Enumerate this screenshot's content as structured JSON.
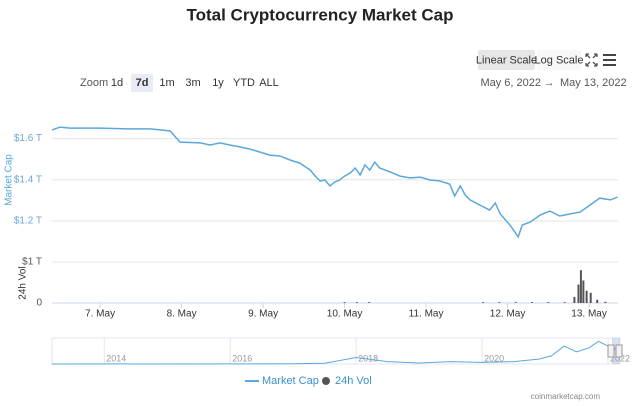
{
  "chart_data": [
    {
      "type": "line",
      "title": "Total Cryptocurrency Market Cap",
      "y_label": "Market Cap",
      "zoom_label": "Zoom",
      "zoom_buttons": [
        "1d",
        "7d",
        "1m",
        "3m",
        "1y",
        "YTD",
        "ALL"
      ],
      "zoom_selected": "7d",
      "scale_buttons": [
        "Linear Scale",
        "Log Scale"
      ],
      "scale_selected": "Linear Scale",
      "log_scale": false,
      "range_from": "May 6, 2022",
      "range_separator": "→",
      "range_to": "May 13, 2022",
      "grid": true,
      "xlim": [
        6.41,
        13.355
      ],
      "xticks": [
        {
          "value": 7,
          "label": "7. May"
        },
        {
          "value": 8,
          "label": "8. May"
        },
        {
          "value": 9,
          "label": "9. May"
        },
        {
          "value": 10,
          "label": "10. May"
        },
        {
          "value": 11,
          "label": "11. May"
        },
        {
          "value": 12,
          "label": "12. May"
        },
        {
          "value": 13,
          "label": "13. May"
        }
      ],
      "ylim": [
        1.02,
        1.7
      ],
      "yticks": [
        {
          "value": 1.2,
          "label": "$1.2 T"
        },
        {
          "value": 1.4,
          "label": "$1.4 T"
        },
        {
          "value": 1.6,
          "label": "$1.6 T"
        }
      ],
      "series": [
        {
          "name": "Market Cap",
          "color": "#5aa8dc",
          "x": [
            6.41,
            6.51,
            6.63,
            7.0,
            7.37,
            7.61,
            7.74,
            7.86,
            7.98,
            8.23,
            8.35,
            8.47,
            8.59,
            8.72,
            8.84,
            8.96,
            9.08,
            9.21,
            9.33,
            9.45,
            9.58,
            9.64,
            9.7,
            9.76,
            9.82,
            9.88,
            9.94,
            10.0,
            10.07,
            10.13,
            10.19,
            10.25,
            10.31,
            10.37,
            10.43,
            10.56,
            10.68,
            10.8,
            10.93,
            11.05,
            11.17,
            11.29,
            11.35,
            11.42,
            11.48,
            11.54,
            11.66,
            11.78,
            11.85,
            11.91,
            12.03,
            12.09,
            12.13,
            12.18,
            12.28,
            12.4,
            12.52,
            12.64,
            12.77,
            12.89,
            13.01,
            13.13,
            13.26,
            13.35
          ],
          "values": [
            1.642,
            1.656,
            1.651,
            1.651,
            1.647,
            1.647,
            1.642,
            1.637,
            1.583,
            1.579,
            1.569,
            1.579,
            1.569,
            1.559,
            1.549,
            1.535,
            1.52,
            1.515,
            1.496,
            1.481,
            1.447,
            1.418,
            1.394,
            1.399,
            1.37,
            1.389,
            1.399,
            1.418,
            1.433,
            1.457,
            1.423,
            1.472,
            1.447,
            1.486,
            1.457,
            1.438,
            1.418,
            1.409,
            1.413,
            1.399,
            1.394,
            1.379,
            1.321,
            1.37,
            1.326,
            1.302,
            1.277,
            1.253,
            1.287,
            1.234,
            1.18,
            1.146,
            1.122,
            1.18,
            1.195,
            1.229,
            1.248,
            1.224,
            1.234,
            1.243,
            1.277,
            1.311,
            1.302,
            1.316
          ]
        }
      ]
    },
    {
      "type": "bar",
      "y_label": "24h Vol",
      "ylim": [
        0,
        1
      ],
      "yticks": [
        0,
        {
          "value": 1,
          "label": "$1 T"
        }
      ],
      "series": [
        {
          "name": "24h Vol",
          "color": "#555555",
          "x": [
            10.0,
            10.15,
            10.3,
            11.7,
            11.9,
            12.1,
            12.3,
            12.5,
            12.7,
            12.82,
            12.87,
            12.9,
            12.93,
            12.97,
            13.02,
            13.1,
            13.2
          ],
          "values": [
            0.02,
            0.02,
            0.02,
            0.02,
            0.02,
            0.02,
            0.02,
            0.02,
            0.02,
            0.15,
            0.45,
            0.8,
            0.55,
            0.3,
            0.25,
            0.08,
            0.03
          ]
        }
      ]
    },
    {
      "type": "line",
      "xlim": [
        2013.17,
        2022.19
      ],
      "xticks": [
        2014,
        2016,
        2018,
        2020,
        2022
      ],
      "ylim": [
        0,
        3.2
      ],
      "series": [
        {
          "color": "#5aa8dc",
          "x": [
            2013.17,
            2017.0,
            2017.5,
            2018.0,
            2018.5,
            2019.0,
            2019.5,
            2020.0,
            2020.5,
            2020.9,
            2021.1,
            2021.3,
            2021.5,
            2021.7,
            2021.85,
            2022.0,
            2022.19
          ],
          "values": [
            0.002,
            0.02,
            0.1,
            0.8,
            0.3,
            0.12,
            0.3,
            0.2,
            0.3,
            0.6,
            1.0,
            2.2,
            1.5,
            2.0,
            2.8,
            2.2,
            1.6
          ]
        }
      ]
    }
  ],
  "credit": "coinmarketcap.com"
}
